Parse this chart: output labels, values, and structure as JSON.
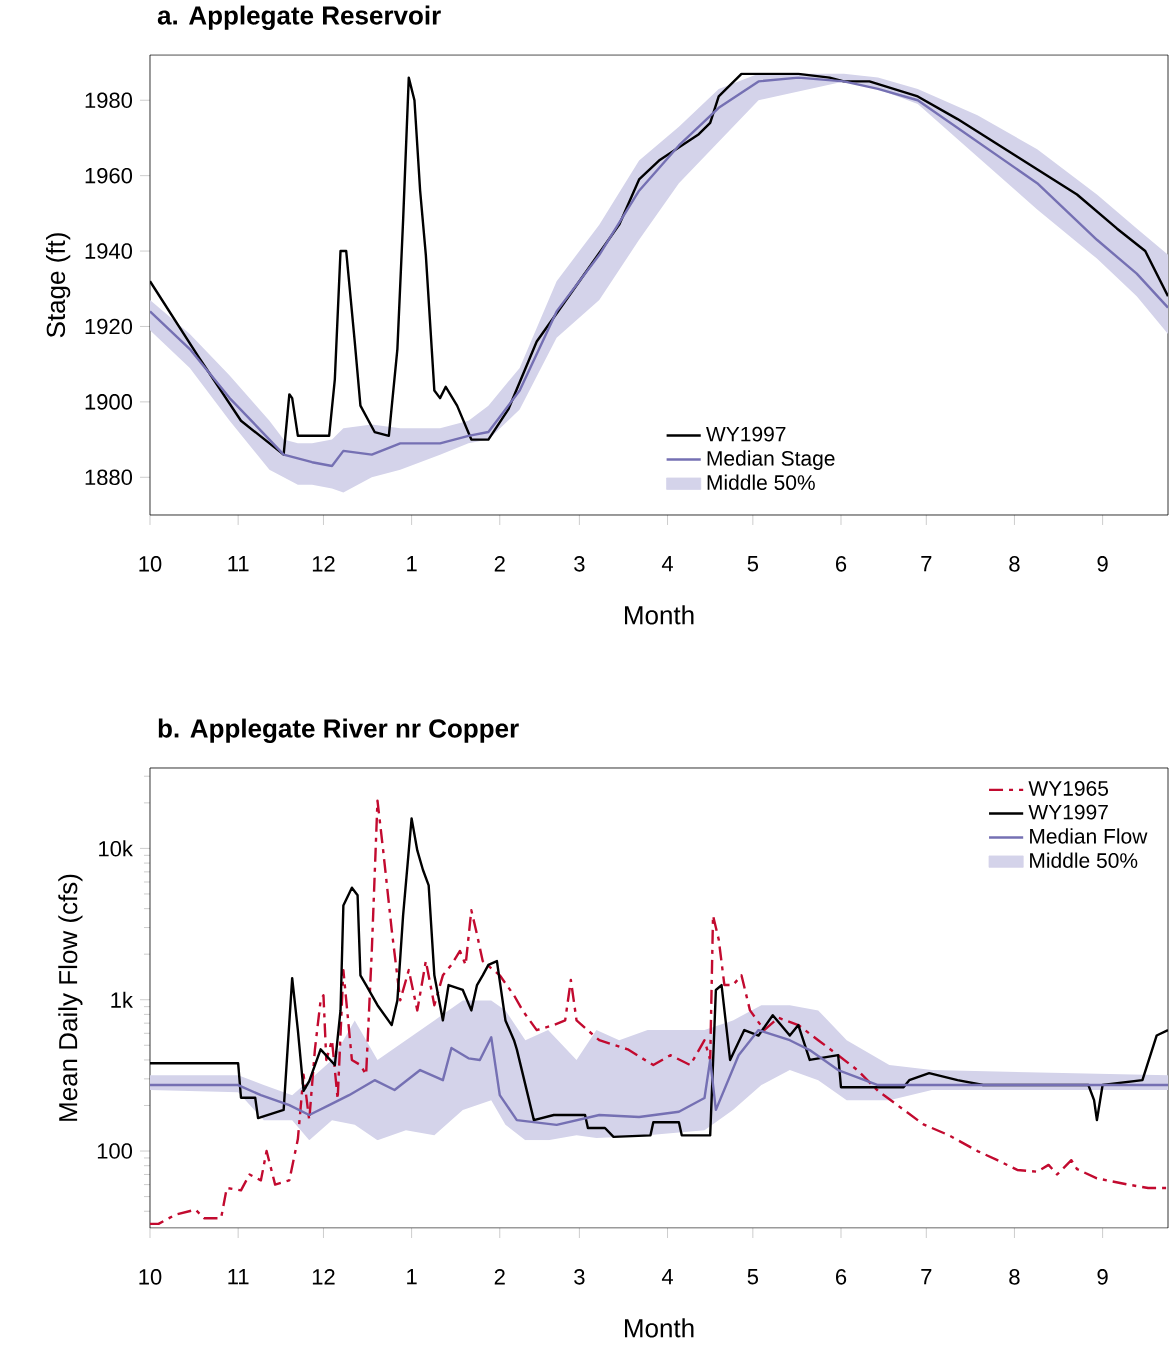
{
  "chart_data": [
    {
      "type": "line",
      "title": "a. Applegate Reservoir",
      "xlabel": "Month",
      "ylabel": "Stage (ft)",
      "xlim": [
        "1996-10-01",
        "1997-09-24"
      ],
      "ylim": [
        1870,
        1992
      ],
      "xticks": [
        {
          "value": "1996-10-01",
          "label": "10"
        },
        {
          "value": "1996-11-01",
          "label": "11"
        },
        {
          "value": "1996-12-01",
          "label": "12"
        },
        {
          "value": "1997-01-01",
          "label": "1"
        },
        {
          "value": "1997-02-01",
          "label": "2"
        },
        {
          "value": "1997-03-01",
          "label": "3"
        },
        {
          "value": "1997-04-01",
          "label": "4"
        },
        {
          "value": "1997-05-01",
          "label": "5"
        },
        {
          "value": "1997-06-01",
          "label": "6"
        },
        {
          "value": "1997-07-01",
          "label": "7"
        },
        {
          "value": "1997-08-01",
          "label": "8"
        },
        {
          "value": "1997-09-01",
          "label": "9"
        }
      ],
      "yticks": [
        1880,
        1900,
        1920,
        1940,
        1960,
        1980
      ],
      "legend": "bottom",
      "series": [
        {
          "name": "WY1997",
          "color": "#000000",
          "line_style": "solid",
          "x": [
            "1996-10-01",
            "1996-10-18",
            "1996-11-02",
            "1996-11-17",
            "1996-11-19",
            "1996-11-20",
            "1996-11-22",
            "1996-11-30",
            "1996-12-03",
            "1996-12-05",
            "1996-12-07",
            "1996-12-09",
            "1996-12-12",
            "1996-12-14",
            "1996-12-19",
            "1996-12-24",
            "1996-12-27",
            "1996-12-29",
            "1996-12-31",
            "1997-01-02",
            "1997-01-04",
            "1997-01-06",
            "1997-01-09",
            "1997-01-11",
            "1997-01-13",
            "1997-01-17",
            "1997-01-22",
            "1997-01-28",
            "1997-02-04",
            "1997-02-14",
            "1997-03-01",
            "1997-03-15",
            "1997-03-22",
            "1997-03-29",
            "1997-04-12",
            "1997-04-16",
            "1997-04-19",
            "1997-04-27",
            "1997-05-08",
            "1997-05-17",
            "1997-05-28",
            "1997-06-02",
            "1997-06-11",
            "1997-06-28",
            "1997-07-12",
            "1997-08-02",
            "1997-08-23",
            "1997-09-06",
            "1997-09-16",
            "1997-09-24"
          ],
          "values": [
            1932,
            1912,
            1895,
            1886,
            1902,
            1901,
            1891,
            1891,
            1891,
            1906,
            1940,
            1940,
            1916,
            1899,
            1892,
            1891,
            1914,
            1948,
            1986,
            1980,
            1956,
            1939,
            1903,
            1901,
            1904,
            1899,
            1890,
            1890,
            1898,
            1916,
            1932,
            1947,
            1959,
            1964,
            1971,
            1974,
            1981,
            1987,
            1987,
            1987,
            1986,
            1985,
            1985,
            1981,
            1975,
            1965,
            1955,
            1946,
            1940,
            1928
          ]
        },
        {
          "name": "Median Stage",
          "color": "#7570b3",
          "line_style": "solid",
          "x": [
            "1996-10-01",
            "1996-10-15",
            "1996-10-29",
            "1996-11-12",
            "1996-11-17",
            "1996-11-22",
            "1996-11-27",
            "1996-12-04",
            "1996-12-08",
            "1996-12-18",
            "1996-12-28",
            "1997-01-11",
            "1997-01-21",
            "1997-01-28",
            "1997-02-08",
            "1997-02-21",
            "1997-03-08",
            "1997-03-22",
            "1997-04-05",
            "1997-04-19",
            "1997-05-03",
            "1997-05-17",
            "1997-06-02",
            "1997-06-14",
            "1997-06-28",
            "1997-07-19",
            "1997-08-09",
            "1997-08-30",
            "1997-09-13",
            "1997-09-24"
          ],
          "values": [
            1924,
            1914,
            1901,
            1890,
            1886,
            1885,
            1884,
            1883,
            1887,
            1886,
            1889,
            1889,
            1891,
            1892,
            1903,
            1924,
            1939,
            1956,
            1968,
            1978,
            1985,
            1986,
            1985,
            1983,
            1980,
            1969,
            1958,
            1943,
            1934,
            1925
          ]
        },
        {
          "name": "Middle 50%",
          "type": "area",
          "color": "#d4d3ea",
          "x": [
            "1996-10-01",
            "1996-10-15",
            "1996-10-29",
            "1996-11-12",
            "1996-11-17",
            "1996-11-22",
            "1996-11-27",
            "1996-12-04",
            "1996-12-08",
            "1996-12-18",
            "1996-12-28",
            "1997-01-11",
            "1997-01-21",
            "1997-01-28",
            "1997-02-08",
            "1997-02-21",
            "1997-03-08",
            "1997-03-22",
            "1997-04-05",
            "1997-04-19",
            "1997-05-03",
            "1997-06-02",
            "1997-06-14",
            "1997-06-28",
            "1997-07-19",
            "1997-08-09",
            "1997-08-30",
            "1997-09-13",
            "1997-09-24"
          ],
          "values": [
            null,
            null,
            null,
            null,
            null,
            null,
            null,
            null,
            null,
            null,
            null,
            null,
            null,
            null,
            null,
            null,
            null,
            null,
            null,
            null,
            null,
            null,
            null,
            null,
            null,
            null,
            null,
            null,
            null
          ],
          "upper": [
            1927,
            1918,
            1907,
            1895,
            1890,
            1889,
            1889,
            1890,
            1893,
            1894,
            1893,
            1893,
            1895,
            1899,
            1909,
            1932,
            1947,
            1964,
            1973,
            1983,
            1987,
            1987,
            1986,
            1983,
            1976,
            1967,
            1955,
            1946,
            1939
          ],
          "lower": [
            1919,
            1909,
            1895,
            1882,
            1880,
            1878,
            1878,
            1877,
            1876,
            1880,
            1882,
            1886,
            1889,
            1890,
            1898,
            1917,
            1927,
            1943,
            1958,
            1969,
            1980,
            1985,
            1983,
            1979,
            1965,
            1951,
            1938,
            1928,
            1918
          ]
        }
      ]
    },
    {
      "type": "line",
      "title": "b. Applegate River nr Copper",
      "xlabel": "Month",
      "ylabel": "Mean Daily Flow (cfs)",
      "log": true,
      "xlim": [
        "1996-10-01",
        "1997-09-24"
      ],
      "ylim": [
        31,
        34000
      ],
      "xticks": [
        {
          "value": "1996-10-01",
          "label": "10"
        },
        {
          "value": "1996-11-01",
          "label": "11"
        },
        {
          "value": "1996-12-01",
          "label": "12"
        },
        {
          "value": "1997-01-01",
          "label": "1"
        },
        {
          "value": "1997-02-01",
          "label": "2"
        },
        {
          "value": "1997-03-01",
          "label": "3"
        },
        {
          "value": "1997-04-01",
          "label": "4"
        },
        {
          "value": "1997-05-01",
          "label": "5"
        },
        {
          "value": "1997-06-01",
          "label": "6"
        },
        {
          "value": "1997-07-01",
          "label": "7"
        },
        {
          "value": "1997-08-01",
          "label": "8"
        },
        {
          "value": "1997-09-01",
          "label": "9"
        }
      ],
      "yticks": [
        {
          "value": 40,
          "label": null
        },
        {
          "value": 50,
          "label": null
        },
        {
          "value": 60,
          "label": null
        },
        {
          "value": 70,
          "label": null
        },
        {
          "value": 80,
          "label": null
        },
        {
          "value": 90,
          "label": null
        },
        {
          "value": 100,
          "label": "100"
        },
        {
          "value": 200,
          "label": null
        },
        {
          "value": 300,
          "label": null
        },
        {
          "value": 400,
          "label": null
        },
        {
          "value": 500,
          "label": null
        },
        {
          "value": 600,
          "label": null
        },
        {
          "value": 700,
          "label": null
        },
        {
          "value": 800,
          "label": null
        },
        {
          "value": 900,
          "label": null
        },
        {
          "value": 1000,
          "label": "1k"
        },
        {
          "value": 2000,
          "label": null
        },
        {
          "value": 3000,
          "label": null
        },
        {
          "value": 4000,
          "label": null
        },
        {
          "value": 5000,
          "label": null
        },
        {
          "value": 6000,
          "label": null
        },
        {
          "value": 7000,
          "label": null
        },
        {
          "value": 8000,
          "label": null
        },
        {
          "value": 9000,
          "label": null
        },
        {
          "value": 10000,
          "label": "10k"
        },
        {
          "value": 20000,
          "label": null
        },
        {
          "value": 30000,
          "label": null
        }
      ],
      "legend": "top right",
      "series": [
        {
          "name": "WY1965",
          "color": "#c20a2f",
          "line_style": "dashed",
          "x": [
            "1996-10-01",
            "1996-10-04",
            "1996-10-10",
            "1996-10-17",
            "1996-10-20",
            "1996-10-26",
            "1996-10-28",
            "1996-11-02",
            "1996-11-05",
            "1996-11-09",
            "1996-11-11",
            "1996-11-14",
            "1996-11-19",
            "1996-11-22",
            "1996-11-24",
            "1996-11-26",
            "1996-11-28",
            "1996-11-30",
            "1996-12-01",
            "1996-12-02",
            "1996-12-04",
            "1996-12-06",
            "1996-12-08",
            "1996-12-10",
            "1996-12-11",
            "1996-12-14",
            "1996-12-16",
            "1996-12-18",
            "1996-12-20",
            "1996-12-22",
            "1996-12-25",
            "1996-12-28",
            "1996-12-31",
            "1997-01-03",
            "1997-01-06",
            "1997-01-09",
            "1997-01-12",
            "1997-01-15",
            "1997-01-18",
            "1997-01-20",
            "1997-01-22",
            "1997-01-24",
            "1997-01-26",
            "1997-02-01",
            "1997-02-06",
            "1997-02-09",
            "1997-02-14",
            "1997-02-20",
            "1997-02-24",
            "1997-02-26",
            "1997-02-28",
            "1997-03-08",
            "1997-03-18",
            "1997-03-27",
            "1997-04-02",
            "1997-04-09",
            "1997-04-14",
            "1997-04-16",
            "1997-04-17",
            "1997-04-19",
            "1997-04-21",
            "1997-04-24",
            "1997-04-27",
            "1997-04-30",
            "1997-05-05",
            "1997-05-10",
            "1997-05-17",
            "1997-05-24",
            "1997-05-31",
            "1997-06-07",
            "1997-06-14",
            "1997-06-21",
            "1997-06-30",
            "1997-07-09",
            "1997-07-19",
            "1997-07-26",
            "1997-08-02",
            "1997-08-09",
            "1997-08-13",
            "1997-08-16",
            "1997-08-21",
            "1997-08-23",
            "1997-08-30",
            "1997-09-10",
            "1997-09-17",
            "1997-09-24"
          ],
          "values": [
            33,
            33,
            38,
            41,
            36,
            36,
            57,
            55,
            70,
            64,
            100,
            60,
            64,
            120,
            320,
            160,
            470,
            990,
            1070,
            400,
            540,
            220,
            1570,
            630,
            400,
            370,
            320,
            2100,
            20700,
            9700,
            2900,
            990,
            1570,
            850,
            1800,
            920,
            1450,
            1700,
            2100,
            1700,
            3900,
            2700,
            1800,
            1450,
            1070,
            850,
            630,
            680,
            730,
            1350,
            730,
            540,
            470,
            370,
            430,
            370,
            540,
            400,
            3600,
            2500,
            1250,
            1250,
            1450,
            850,
            630,
            760,
            680,
            540,
            430,
            340,
            250,
            200,
            150,
            127,
            100,
            87,
            75,
            73,
            81,
            70,
            87,
            76,
            66,
            60,
            57,
            57
          ]
        },
        {
          "name": "WY1997",
          "color": "#000000",
          "line_style": "solid",
          "x": [
            "1996-10-01",
            "1996-11-01",
            "1996-11-02",
            "1996-11-07",
            "1996-11-08",
            "1996-11-17",
            "1996-11-20",
            "1996-11-22",
            "1996-11-24",
            "1996-11-26",
            "1996-11-30",
            "1996-12-05",
            "1996-12-07",
            "1996-12-08",
            "1996-12-11",
            "1996-12-13",
            "1996-12-14",
            "1996-12-16",
            "1996-12-20",
            "1996-12-25",
            "1996-12-27",
            "1996-12-29",
            "1997-01-01",
            "1997-01-03",
            "1997-01-05",
            "1997-01-07",
            "1997-01-09",
            "1997-01-12",
            "1997-01-14",
            "1997-01-19",
            "1997-01-22",
            "1997-01-24",
            "1997-01-26",
            "1997-01-28",
            "1997-01-31",
            "1997-02-03",
            "1997-02-06",
            "1997-02-07",
            "1997-02-13",
            "1997-02-20",
            "1997-03-03",
            "1997-03-04",
            "1997-03-10",
            "1997-03-13",
            "1997-03-26",
            "1997-03-27",
            "1997-04-05",
            "1997-04-06",
            "1997-04-16",
            "1997-04-18",
            "1997-04-20",
            "1997-04-23",
            "1997-04-28",
            "1997-05-03",
            "1997-05-08",
            "1997-05-14",
            "1997-05-17",
            "1997-05-21",
            "1997-05-31",
            "1997-06-01",
            "1997-06-23",
            "1997-06-25",
            "1997-07-02",
            "1997-07-12",
            "1997-07-21",
            "1997-08-27",
            "1997-08-29",
            "1997-08-30",
            "1997-09-01",
            "1997-09-15",
            "1997-09-20",
            "1997-09-24"
          ],
          "values": [
            380,
            380,
            225,
            225,
            165,
            187,
            1390,
            630,
            250,
            290,
            470,
            370,
            850,
            4200,
            5500,
            4900,
            1450,
            1250,
            920,
            680,
            990,
            3600,
            15800,
            9700,
            7200,
            5700,
            1450,
            730,
            1250,
            1160,
            850,
            1250,
            1450,
            1700,
            1800,
            730,
            540,
            470,
            160,
            173,
            173,
            142,
            142,
            124,
            127,
            155,
            155,
            127,
            127,
            1160,
            1250,
            400,
            630,
            580,
            790,
            580,
            680,
            400,
            430,
            264,
            264,
            294,
            327,
            294,
            273,
            273,
            217,
            160,
            273,
            294,
            580,
            630
          ]
        },
        {
          "name": "Median Flow",
          "color": "#7570b3",
          "line_style": "solid",
          "x": [
            "1996-10-01",
            "1996-11-01",
            "1996-11-09",
            "1996-11-19",
            "1996-11-26",
            "1996-12-03",
            "1996-12-10",
            "1996-12-19",
            "1996-12-26",
            "1997-01-04",
            "1997-01-12",
            "1997-01-15",
            "1997-01-21",
            "1997-01-25",
            "1997-01-29",
            "1997-02-01",
            "1997-02-07",
            "1997-02-21",
            "1997-03-08",
            "1997-03-22",
            "1997-04-05",
            "1997-04-14",
            "1997-04-16",
            "1997-04-18",
            "1997-04-26",
            "1997-05-03",
            "1997-05-14",
            "1997-05-21",
            "1997-05-31",
            "1997-06-14",
            "1997-09-24"
          ],
          "values": [
            273,
            273,
            234,
            201,
            173,
            201,
            234,
            294,
            253,
            343,
            294,
            480,
            410,
            400,
            565,
            234,
            160,
            149,
            173,
            168,
            182,
            224,
            400,
            187,
            430,
            630,
            540,
            465,
            343,
            273,
            273
          ]
        },
        {
          "name": "Middle 50%",
          "type": "area",
          "color": "#d4d3ea",
          "x": [
            "1996-10-01",
            "1996-11-01",
            "1996-11-10",
            "1996-11-20",
            "1996-11-26",
            "1996-12-04",
            "1996-12-12",
            "1996-12-20",
            "1996-12-30",
            "1997-01-09",
            "1997-01-19",
            "1997-01-29",
            "1997-02-03",
            "1997-02-10",
            "1997-02-18",
            "1997-02-28",
            "1997-03-07",
            "1997-03-15",
            "1997-03-25",
            "1997-04-14",
            "1997-04-24",
            "1997-05-04",
            "1997-05-14",
            "1997-05-24",
            "1997-06-03",
            "1997-06-18",
            "1997-07-03",
            "1997-09-24"
          ],
          "values": [
            null,
            null,
            null,
            null,
            null,
            null,
            null,
            null,
            null,
            null,
            null,
            null,
            null,
            null,
            null,
            null,
            null,
            null,
            null,
            null,
            null,
            null,
            null,
            null,
            null,
            null,
            null,
            null
          ],
          "upper": [
            317,
            317,
            273,
            234,
            294,
            400,
            730,
            400,
            540,
            730,
            990,
            990,
            850,
            540,
            630,
            400,
            630,
            540,
            630,
            630,
            730,
            920,
            920,
            850,
            540,
            370,
            343,
            317
          ],
          "lower": [
            253,
            245,
            160,
            160,
            118,
            160,
            149,
            118,
            137,
            127,
            187,
            217,
            149,
            118,
            118,
            127,
            122,
            124,
            127,
            137,
            187,
            273,
            343,
            294,
            217,
            217,
            253,
            253
          ]
        }
      ]
    }
  ]
}
